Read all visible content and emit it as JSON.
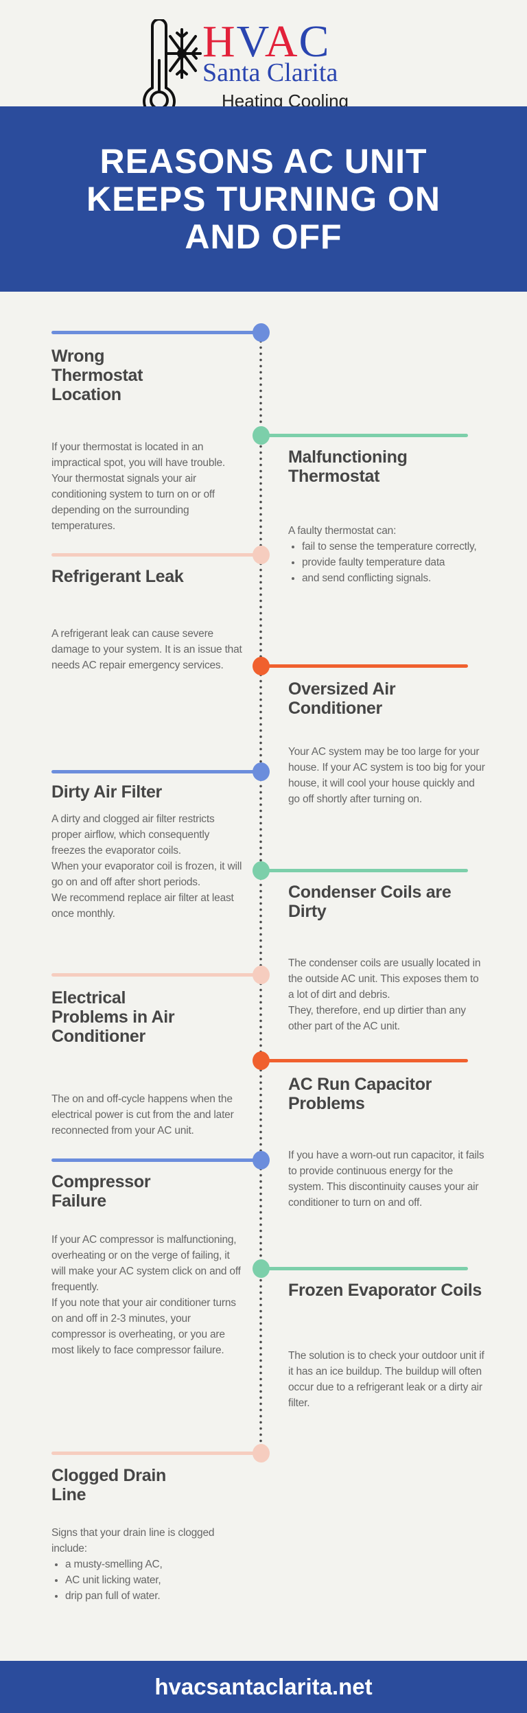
{
  "logo": {
    "hvac": [
      "H",
      "V",
      "A",
      "C"
    ],
    "hvac_colors": [
      "#e2213a",
      "#2a45b0",
      "#e2213a",
      "#2a45b0"
    ],
    "line2": "Santa Clarita",
    "line3": "Heating Cooling",
    "icon": "thermometer-snowflake-icon"
  },
  "header": {
    "title": "REASONS AC UNIT KEEPS TURNING ON AND OFF"
  },
  "colors": {
    "blue": "#6b8ddc",
    "green": "#7ccfaa",
    "pink": "#f6cdbf",
    "orange": "#f0602e",
    "band": "#2b4c9c"
  },
  "items": [
    {
      "title": "Wrong Thermostat Location",
      "side": "left",
      "color": "blue",
      "paragraphs": [
        "If your thermostat is located in an impractical spot, you will have trouble. Your thermostat signals your air conditioning system to turn on or off depending on the surrounding temperatures."
      ],
      "bullets": []
    },
    {
      "title": "Malfunctioning Thermostat",
      "side": "right",
      "color": "green",
      "paragraphs": [
        "A faulty thermostat can:"
      ],
      "bullets": [
        "fail to sense the temperature correctly,",
        "provide faulty temperature data",
        "and send conflicting signals."
      ]
    },
    {
      "title": "Refrigerant Leak",
      "side": "left",
      "color": "pink",
      "paragraphs": [
        "A refrigerant leak can cause severe damage to your system. It is an issue that needs AC repair emergency services."
      ],
      "bullets": []
    },
    {
      "title": "Oversized Air Conditioner",
      "side": "right",
      "color": "orange",
      "paragraphs": [
        "Your AC system may be too large for your house. If your AC system is too big for your house, it will cool your house quickly and go off shortly after turning on."
      ],
      "bullets": []
    },
    {
      "title": "Dirty Air Filter",
      "side": "left",
      "color": "blue",
      "paragraphs": [
        "A dirty and clogged air filter restricts proper airflow, which consequently freezes the evaporator coils.",
        "When your evaporator coil is frozen, it will go on and off after short periods.",
        "We recommend replace air filter at least once monthly."
      ],
      "bullets": []
    },
    {
      "title": "Condenser Coils are Dirty",
      "side": "right",
      "color": "green",
      "paragraphs": [
        "The condenser coils are usually located in the outside AC unit. This exposes them to a lot of dirt and debris.",
        "They, therefore, end up dirtier than any other part of the AC unit."
      ],
      "bullets": []
    },
    {
      "title": "Electrical Problems in Air Conditioner",
      "side": "left",
      "color": "pink",
      "paragraphs": [
        "The on and off-cycle happens when the electrical power is cut from the and later reconnected from your AC unit."
      ],
      "bullets": []
    },
    {
      "title": "AC Run Capacitor Problems",
      "side": "right",
      "color": "orange",
      "paragraphs": [
        "If you have a worn-out run capacitor, it fails to provide continuous energy for the system. This discontinuity causes your air conditioner to turn on and off."
      ],
      "bullets": []
    },
    {
      "title": "Compressor Failure",
      "side": "left",
      "color": "blue",
      "paragraphs": [
        "If your AC compressor is malfunctioning, overheating or on the verge of failing, it will make your AC system click on and off frequently.",
        "If you note that your air conditioner turns on and off in 2-3 minutes, your compressor is overheating, or you are most likely to face compressor failure."
      ],
      "bullets": []
    },
    {
      "title": "Frozen Evaporator Coils",
      "side": "right",
      "color": "green",
      "paragraphs": [
        "The solution is to check your outdoor unit if it has an ice buildup. The buildup will often occur due to a refrigerant leak or a dirty air filter."
      ],
      "bullets": []
    },
    {
      "title": "Clogged Drain Line",
      "side": "left",
      "color": "pink",
      "paragraphs": [
        "Signs that your drain line is clogged include:"
      ],
      "bullets": [
        "a musty-smelling AC,",
        "AC unit licking water,",
        "drip pan full of water."
      ]
    }
  ],
  "footer": {
    "url": "hvacsantaclarita.net"
  }
}
